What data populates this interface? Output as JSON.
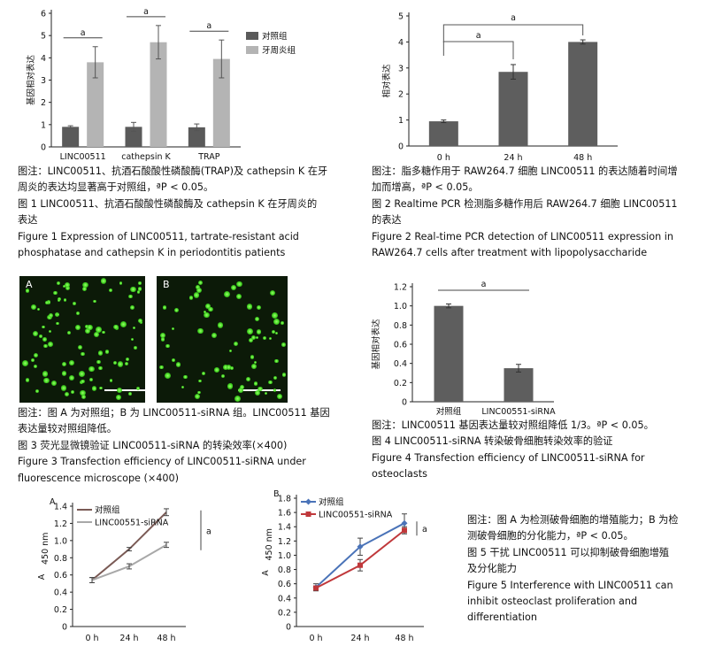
{
  "fig1": {
    "chart_data": {
      "type": "bar",
      "categories": [
        "LINC00511",
        "cathepsin K",
        "TRAP"
      ],
      "series": [
        {
          "name": "对照组",
          "values": [
            0.9,
            0.9,
            0.88
          ],
          "errors": [
            0.05,
            0.2,
            0.15
          ],
          "color": "#5a5a5a"
        },
        {
          "name": "牙周炎组",
          "values": [
            3.8,
            4.7,
            3.95
          ],
          "errors": [
            0.7,
            0.75,
            0.85
          ],
          "color": "#b4b4b4"
        }
      ],
      "ylabel": "基因相对表达",
      "ylim": [
        0,
        6
      ],
      "yticks": [
        "0",
        "1",
        "2",
        "3",
        "4",
        "5",
        "6"
      ],
      "sig_label": "a",
      "legend": "right"
    },
    "caption": [
      "图注：LINC00511、抗酒石酸酸性磷酸酶(TRAP)及 cathepsin K 在牙",
      "周炎的表达均显著高于对照组，ªP < 0.05。",
      "图 1   LINC00511、抗酒石酸酸性磷酸酶及 cathepsin K 在牙周炎的",
      "表达",
      "Figure 1    Expression of LINC00511, tartrate-resistant acid",
      "phosphatase and cathepsin K in periodontitis patients"
    ]
  },
  "fig2": {
    "chart_data": {
      "type": "bar",
      "categories": [
        "0 h",
        "24 h",
        "48 h"
      ],
      "values": [
        0.95,
        2.85,
        4.0
      ],
      "errors": [
        0.05,
        0.28,
        0.08
      ],
      "color": "#5e5e5e",
      "ylabel": "相对表达",
      "ylim": [
        0,
        5
      ],
      "yticks": [
        "0",
        "1",
        "2",
        "3",
        "4",
        "5"
      ],
      "sig_label": "a"
    },
    "caption": [
      "图注：脂多糖作用于 RAW264.7 细胞 LINC00511 的表达随着时间增",
      "加而增高，ªP < 0.05。",
      "图 2    Realtime PCR 检测脂多糖作用后 RAW264.7 细胞 LINC00511",
      "的表达",
      "Figure 2    Real-time PCR detection of LINC00511 expression in",
      "RAW264.7 cells after treatment with lipopolysaccharide"
    ]
  },
  "fig3": {
    "panel_a": "A",
    "panel_b": "B",
    "caption": [
      "图注：图 A 为对照组；B 为 LINC00511-siRNA 组。LINC00511 基因",
      "表达量较对照组降低。",
      "图 3    荧光显微镜验证 LINC00511-siRNA 的转染效率(×400)",
      "Figure 3    Transfection efficiency of LINC00511-siRNA under",
      "fluorescence microscope (×400)"
    ]
  },
  "fig4": {
    "chart_data": {
      "type": "bar",
      "categories": [
        "对照组",
        "LINC00551-siRNA"
      ],
      "values": [
        1.0,
        0.35
      ],
      "errors": [
        0.02,
        0.04
      ],
      "color": "#5e5e5e",
      "ylabel": "基因相对表达",
      "ylim": [
        0,
        1.2
      ],
      "yticks": [
        "0",
        "0.2",
        "0.4",
        "0.6",
        "0.8",
        "1.0",
        "1.2"
      ],
      "sig_label": "a"
    },
    "caption": [
      "图注：LINC00511 基因表达量较对照组降低 1/3。ªP < 0.05。",
      "图 4    LINC00511-siRNA 转染破骨细胞转染效率的验证",
      "Figure 4    Transfection efficiency of LINC00511-siRNA for",
      "osteoclasts"
    ]
  },
  "fig5a": {
    "panel": "A",
    "chart_data": {
      "type": "line",
      "x": [
        "0 h",
        "24 h",
        "48 h"
      ],
      "series": [
        {
          "name": "对照组",
          "values": [
            0.54,
            0.9,
            1.33
          ],
          "errors": [
            0.03,
            0.02,
            0.04
          ],
          "color": "#7a5a55"
        },
        {
          "name": "LINC00551-siRNA",
          "values": [
            0.54,
            0.7,
            0.95
          ],
          "errors": [
            0.03,
            0.03,
            0.03
          ],
          "color": "#a8a8a8"
        }
      ],
      "ylabel": "A",
      "ylabel_sub": "450 nm",
      "ylim": [
        0,
        1.4
      ],
      "yticks": [
        "0",
        "0.2",
        "0.4",
        "0.6",
        "0.8",
        "1.0",
        "1.2",
        "1.4"
      ],
      "sig_label": "a"
    }
  },
  "fig5b": {
    "panel": "B",
    "chart_data": {
      "type": "line",
      "x": [
        "0 h",
        "24 h",
        "48 h"
      ],
      "series": [
        {
          "name": "对照组",
          "values": [
            0.55,
            1.12,
            1.45
          ],
          "errors": [
            0.05,
            0.12,
            0.13
          ],
          "color": "#4a73b8"
        },
        {
          "name": "LINC00551-siRNA",
          "values": [
            0.54,
            0.86,
            1.35
          ],
          "errors": [
            0.03,
            0.08,
            0.05
          ],
          "color": "#c0383b"
        }
      ],
      "ylabel": "A",
      "ylabel_sub": "450 nm",
      "ylim": [
        0,
        1.8
      ],
      "yticks": [
        "0",
        "0.2",
        "0.4",
        "0.6",
        "0.8",
        "1.0",
        "1.2",
        "1.4",
        "1.6",
        "1.8"
      ],
      "sig_label": "a"
    }
  },
  "fig5": {
    "caption": [
      "图注：图 A 为检测破骨细胞的增殖能力；B 为检",
      "测破骨细胞的分化能力，ªP < 0.05。",
      "图 5    干扰 LINC00511 可以抑制破骨细胞增殖",
      "及分化能力",
      "Figure 5    Interference with LINC00511 can",
      "inhibit osteoclast proliferation and",
      "differentiation"
    ]
  }
}
